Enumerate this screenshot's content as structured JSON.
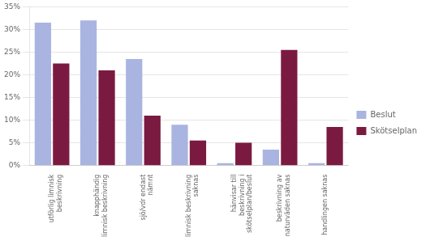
{
  "chart_data": {
    "type": "bar",
    "categories": [
      "utförlig limnisk\nbeskrivning",
      "knapphändig\nlimnisk beskrivning",
      "sjö/vdr endast\nnämnt",
      "limnisk beskrivning\nsaknas",
      "hänvisar till\nbeskrivning i\nskötselplan/beslut",
      "beskrivning av\nnaturväden saknas",
      "handlingen saknas"
    ],
    "series": [
      {
        "name": "Beslut",
        "color": "#aab4e0",
        "values": [
          31.5,
          32.0,
          23.5,
          9.0,
          0.5,
          3.5,
          0.5
        ]
      },
      {
        "name": "Skötselplan",
        "color": "#7b1a40",
        "values": [
          22.5,
          21.0,
          11.0,
          5.5,
          5.0,
          25.5,
          8.5
        ]
      }
    ],
    "ylim": [
      0,
      35
    ],
    "yticks": [
      {
        "value": 0,
        "label": "0%"
      },
      {
        "value": 5,
        "label": "5%"
      },
      {
        "value": 10,
        "label": "10%"
      },
      {
        "value": 15,
        "label": "15%"
      },
      {
        "value": 20,
        "label": "20%"
      },
      {
        "value": 25,
        "label": "25%"
      },
      {
        "value": 30,
        "label": "30%"
      },
      {
        "value": 35,
        "label": "35%"
      }
    ],
    "grid": true,
    "legend": "right"
  }
}
